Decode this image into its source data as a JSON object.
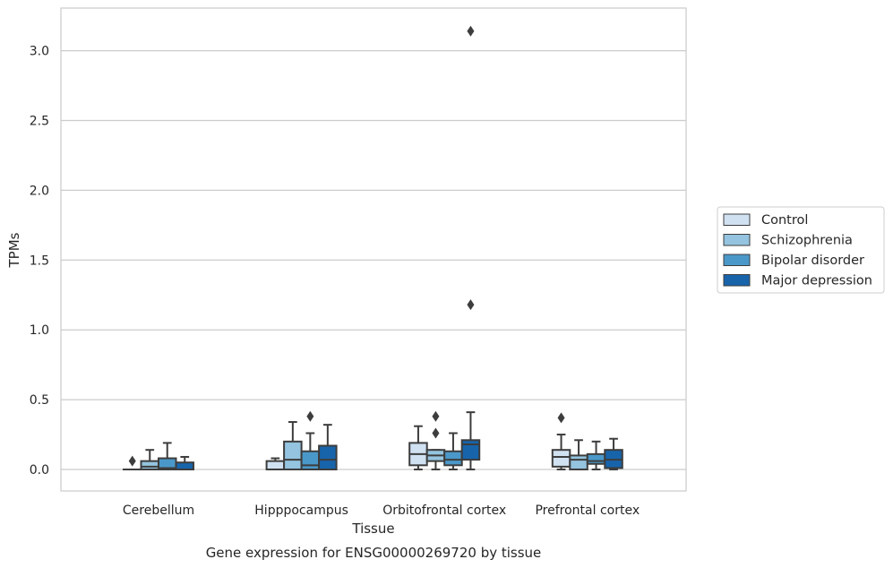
{
  "chart_data": {
    "type": "box",
    "title": "",
    "caption": "Gene expression for ENSG00000269720 by tissue",
    "xlabel": "Tissue",
    "ylabel": "TPMs",
    "ylim": [
      -0.15,
      3.3
    ],
    "yticks": [
      0.0,
      0.5,
      1.0,
      1.5,
      2.0,
      2.5,
      3.0
    ],
    "ytick_labels": [
      "0.0",
      "0.5",
      "1.0",
      "1.5",
      "2.0",
      "2.5",
      "3.0"
    ],
    "grid": "horizontal",
    "legend_position": "right",
    "categories": [
      "Cerebellum",
      "Hipppocampus",
      "Orbitofrontal cortex",
      "Prefrontal cortex"
    ],
    "series": [
      {
        "name": "Control",
        "color": "#d0e1f2",
        "boxes": [
          {
            "min": 0.0,
            "q1": 0.0,
            "median": 0.0,
            "q3": 0.0,
            "max": 0.0,
            "outliers": [
              0.06
            ]
          },
          {
            "min": 0.0,
            "q1": 0.0,
            "median": 0.0,
            "q3": 0.06,
            "max": 0.08,
            "outliers": []
          },
          {
            "min": 0.0,
            "q1": 0.03,
            "median": 0.11,
            "q3": 0.19,
            "max": 0.31,
            "outliers": []
          },
          {
            "min": 0.0,
            "q1": 0.02,
            "median": 0.09,
            "q3": 0.14,
            "max": 0.25,
            "outliers": [
              0.37
            ]
          }
        ]
      },
      {
        "name": "Schizophrenia",
        "color": "#94c4df",
        "boxes": [
          {
            "min": 0.0,
            "q1": 0.0,
            "median": 0.02,
            "q3": 0.06,
            "max": 0.14,
            "outliers": []
          },
          {
            "min": 0.0,
            "q1": 0.0,
            "median": 0.07,
            "q3": 0.2,
            "max": 0.34,
            "outliers": []
          },
          {
            "min": 0.0,
            "q1": 0.06,
            "median": 0.1,
            "q3": 0.14,
            "max": 0.14,
            "outliers": [
              0.38,
              0.26
            ]
          },
          {
            "min": 0.0,
            "q1": 0.0,
            "median": 0.07,
            "q3": 0.1,
            "max": 0.21,
            "outliers": []
          }
        ]
      },
      {
        "name": "Bipolar disorder",
        "color": "#4a98c9",
        "boxes": [
          {
            "min": 0.0,
            "q1": 0.0,
            "median": 0.01,
            "q3": 0.08,
            "max": 0.19,
            "outliers": []
          },
          {
            "min": 0.0,
            "q1": 0.0,
            "median": 0.03,
            "q3": 0.13,
            "max": 0.26,
            "outliers": [
              0.38
            ]
          },
          {
            "min": 0.0,
            "q1": 0.03,
            "median": 0.07,
            "q3": 0.13,
            "max": 0.26,
            "outliers": []
          },
          {
            "min": 0.0,
            "q1": 0.04,
            "median": 0.06,
            "q3": 0.11,
            "max": 0.2,
            "outliers": []
          }
        ]
      },
      {
        "name": "Major depression",
        "color": "#1764ab",
        "boxes": [
          {
            "min": 0.0,
            "q1": 0.0,
            "median": 0.0,
            "q3": 0.05,
            "max": 0.09,
            "outliers": []
          },
          {
            "min": 0.0,
            "q1": 0.0,
            "median": 0.07,
            "q3": 0.17,
            "max": 0.32,
            "outliers": []
          },
          {
            "min": 0.0,
            "q1": 0.07,
            "median": 0.18,
            "q3": 0.21,
            "max": 0.41,
            "outliers": [
              3.14,
              1.18
            ]
          },
          {
            "min": 0.0,
            "q1": 0.01,
            "median": 0.07,
            "q3": 0.14,
            "max": 0.22,
            "outliers": []
          }
        ]
      }
    ]
  }
}
